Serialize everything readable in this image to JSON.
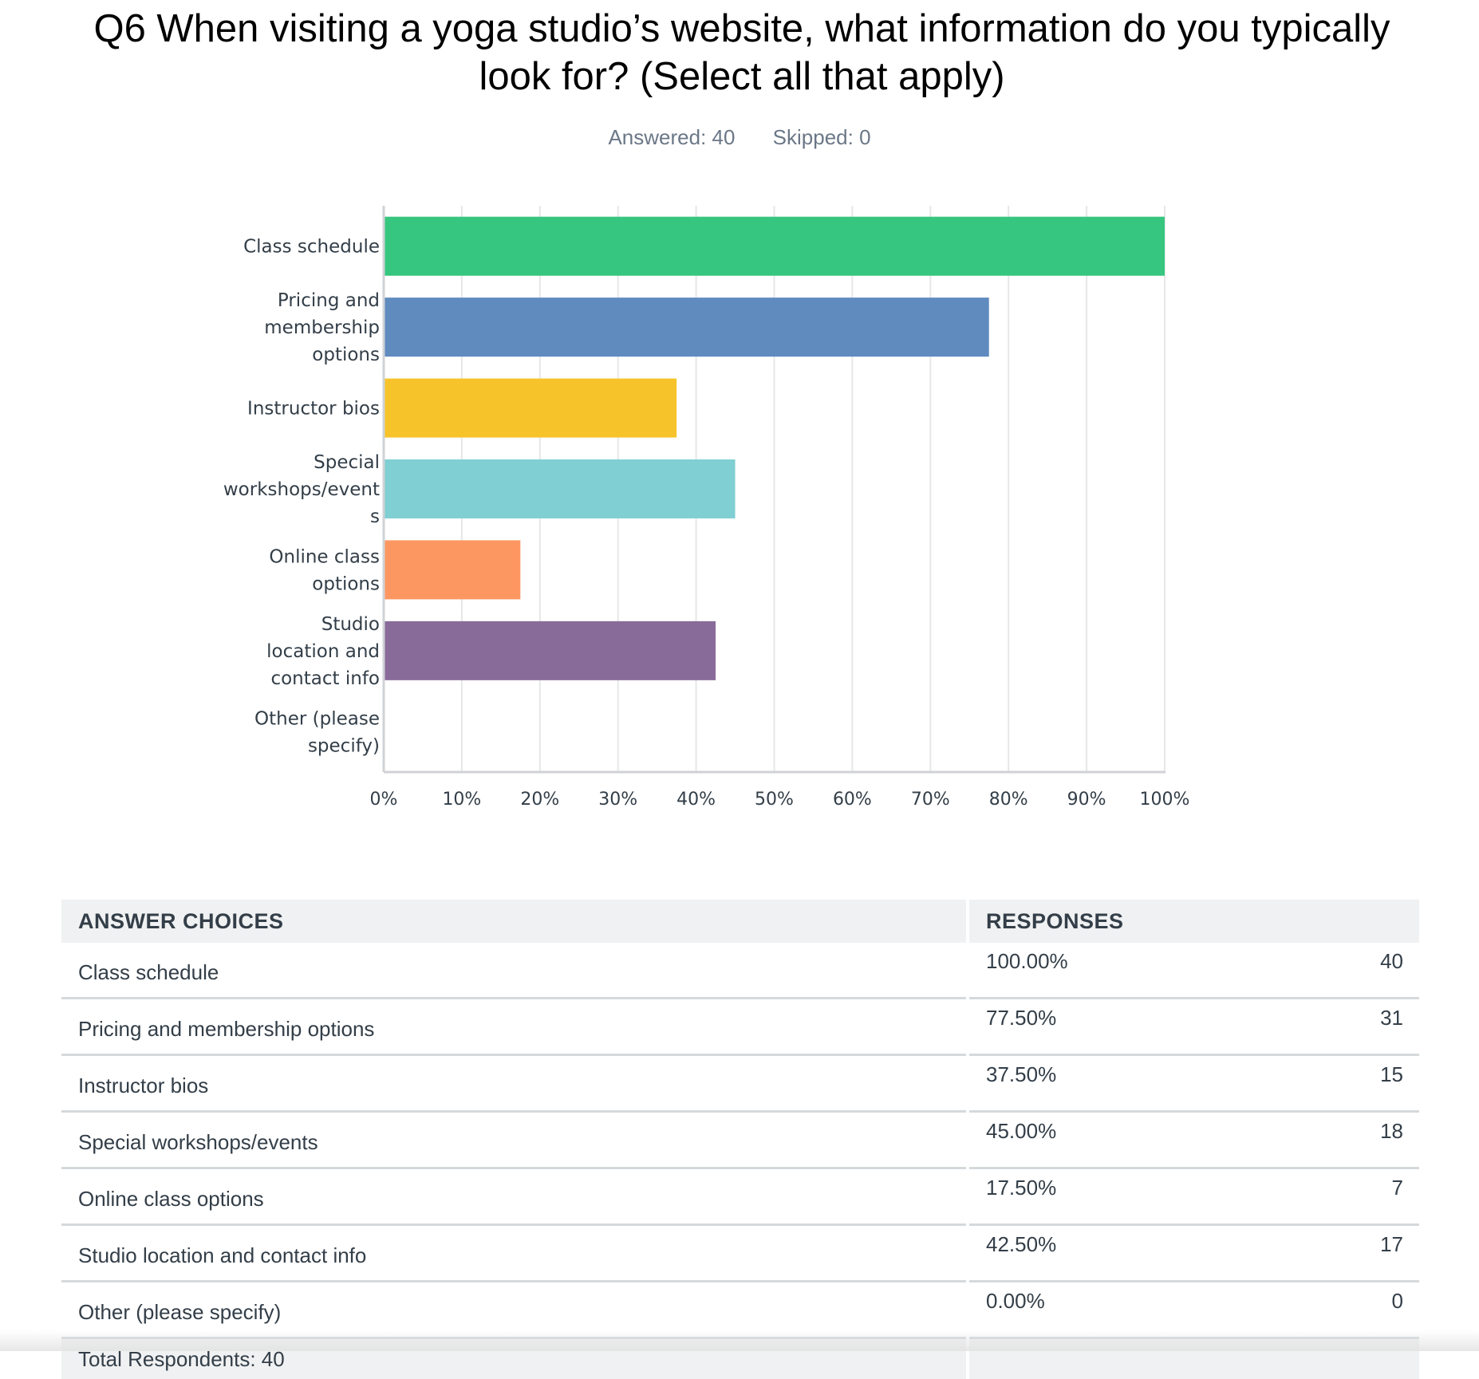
{
  "question": {
    "title_line1": "Q6 When visiting a yoga studio’s website, what information do you typically",
    "title_line2": "look for? (Select all that apply)",
    "answered": "Answered: 40",
    "skipped": "Skipped: 0"
  },
  "chart_data": {
    "type": "bar",
    "orientation": "horizontal",
    "title": "Q6 When visiting a yoga studio’s website, what information do you typically look for? (Select all that apply)",
    "categories": [
      "Class schedule",
      "Pricing and membership options",
      "Instructor bios",
      "Special workshops/events",
      "Online class options",
      "Studio location and contact info",
      "Other (please specify)"
    ],
    "category_label_lines": [
      [
        "Class schedule"
      ],
      [
        "Pricing and",
        "membership",
        "options"
      ],
      [
        "Instructor bios"
      ],
      [
        "Special",
        "workshops/event",
        "s"
      ],
      [
        "Online class",
        "options"
      ],
      [
        "Studio",
        "location and",
        "contact info"
      ],
      [
        "Other (please",
        "specify)"
      ]
    ],
    "values": [
      100,
      77.5,
      37.5,
      45,
      17.5,
      42.5,
      0
    ],
    "colors": [
      "#37c67f",
      "#5f8bbf",
      "#f6c42a",
      "#80cfd2",
      "#fc9762",
      "#896b99",
      "#cccccc"
    ],
    "xlim": [
      0,
      100
    ],
    "x_ticks": [
      "0%",
      "10%",
      "20%",
      "30%",
      "40%",
      "50%",
      "60%",
      "70%",
      "80%",
      "90%",
      "100%"
    ],
    "grid": true,
    "xlabel": "",
    "ylabel": ""
  },
  "table": {
    "headers": [
      "ANSWER CHOICES",
      "RESPONSES"
    ],
    "rows": [
      {
        "choice": "Class schedule",
        "percent": "100.00%",
        "count": "40"
      },
      {
        "choice": "Pricing and membership options",
        "percent": "77.50%",
        "count": "31"
      },
      {
        "choice": "Instructor bios",
        "percent": "37.50%",
        "count": "15"
      },
      {
        "choice": "Special workshops/events",
        "percent": "45.00%",
        "count": "18"
      },
      {
        "choice": "Online class options",
        "percent": "17.50%",
        "count": "7"
      },
      {
        "choice": "Studio location and contact info",
        "percent": "42.50%",
        "count": "17"
      },
      {
        "choice": "Other (please specify)",
        "percent": "0.00%",
        "count": "0"
      }
    ],
    "total": "Total Respondents: 40"
  }
}
